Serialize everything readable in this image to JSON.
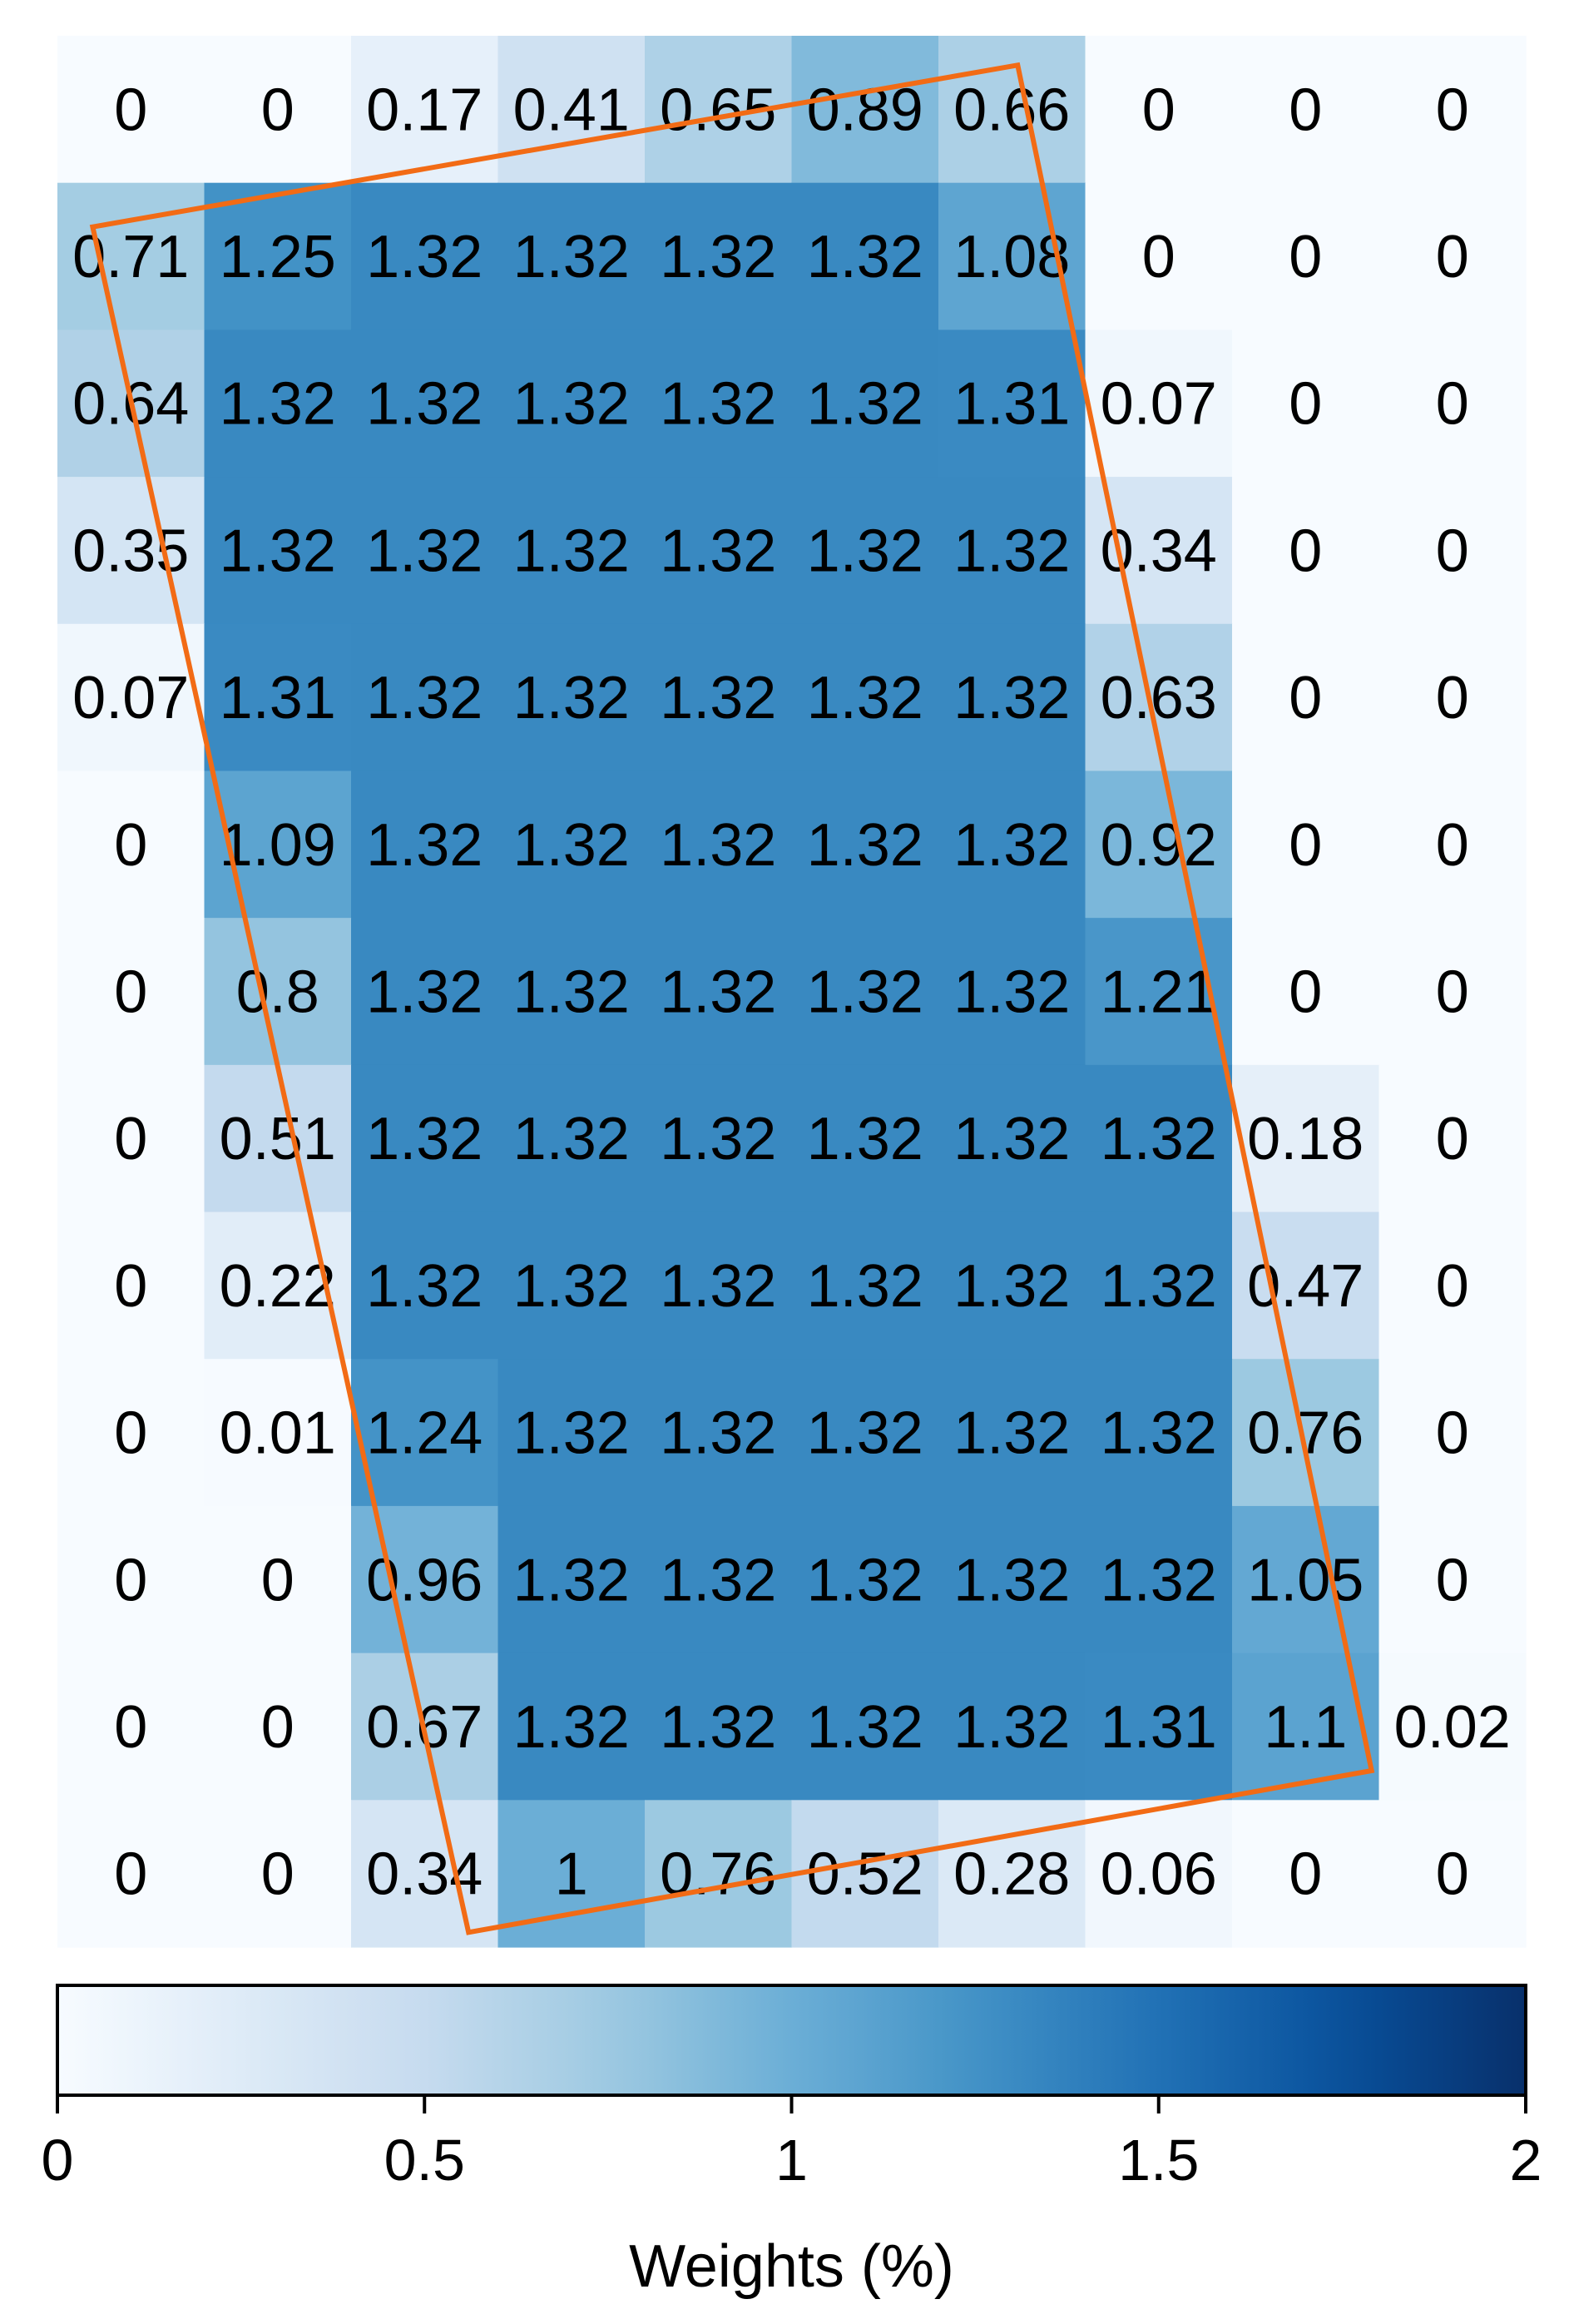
{
  "chart_data": {
    "type": "heatmap",
    "rows": 13,
    "cols": 10,
    "values": [
      [
        "0",
        "0",
        "0.17",
        "0.41",
        "0.65",
        "0.89",
        "0.66",
        "0",
        "0",
        "0"
      ],
      [
        "0.71",
        "1.25",
        "1.32",
        "1.32",
        "1.32",
        "1.32",
        "1.08",
        "0",
        "0",
        "0"
      ],
      [
        "0.64",
        "1.32",
        "1.32",
        "1.32",
        "1.32",
        "1.32",
        "1.31",
        "0.07",
        "0",
        "0"
      ],
      [
        "0.35",
        "1.32",
        "1.32",
        "1.32",
        "1.32",
        "1.32",
        "1.32",
        "0.34",
        "0",
        "0"
      ],
      [
        "0.07",
        "1.31",
        "1.32",
        "1.32",
        "1.32",
        "1.32",
        "1.32",
        "0.63",
        "0",
        "0"
      ],
      [
        "0",
        "1.09",
        "1.32",
        "1.32",
        "1.32",
        "1.32",
        "1.32",
        "0.92",
        "0",
        "0"
      ],
      [
        "0",
        "0.8",
        "1.32",
        "1.32",
        "1.32",
        "1.32",
        "1.32",
        "1.21",
        "0",
        "0"
      ],
      [
        "0",
        "0.51",
        "1.32",
        "1.32",
        "1.32",
        "1.32",
        "1.32",
        "1.32",
        "0.18",
        "0"
      ],
      [
        "0",
        "0.22",
        "1.32",
        "1.32",
        "1.32",
        "1.32",
        "1.32",
        "1.32",
        "0.47",
        "0"
      ],
      [
        "0",
        "0.01",
        "1.24",
        "1.32",
        "1.32",
        "1.32",
        "1.32",
        "1.32",
        "0.76",
        "0"
      ],
      [
        "0",
        "0",
        "0.96",
        "1.32",
        "1.32",
        "1.32",
        "1.32",
        "1.32",
        "1.05",
        "0"
      ],
      [
        "0",
        "0",
        "0.67",
        "1.32",
        "1.32",
        "1.32",
        "1.32",
        "1.31",
        "1.1",
        "0.02"
      ],
      [
        "0",
        "0",
        "0.34",
        "1",
        "0.76",
        "0.52",
        "0.28",
        "0.06",
        "0",
        "0"
      ]
    ],
    "colorbar": {
      "label": "Weights (%)",
      "range": [
        0,
        2
      ],
      "ticks": [
        0,
        0.5,
        1,
        1.5,
        2
      ],
      "tick_labels": [
        "0",
        "0.5",
        "1",
        "1.5",
        "2"
      ],
      "colormap": "Blues"
    },
    "overlay": {
      "shape": "rotated-rectangle",
      "color": "#f26b15",
      "corners_data": [
        [
          0.24,
          1.3
        ],
        [
          6.54,
          0.2
        ],
        [
          8.95,
          11.8
        ],
        [
          2.8,
          12.9
        ]
      ]
    },
    "grid": false,
    "legend": "none"
  }
}
